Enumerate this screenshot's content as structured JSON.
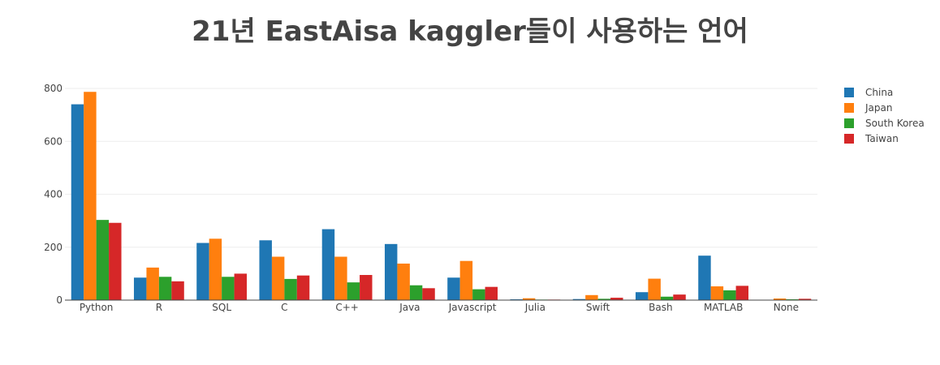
{
  "chart_data": {
    "type": "bar",
    "title": "21년 EastAisa kaggler들이 사용하는 언어",
    "xlabel": "",
    "ylabel": "",
    "ylim": [
      0,
      800
    ],
    "yticks": [
      0,
      200,
      400,
      600,
      800
    ],
    "grid": true,
    "legend_position": "top-right",
    "categories": [
      "Python",
      "R",
      "SQL",
      "C",
      "C++",
      "Java",
      "Javascript",
      "Julia",
      "Swift",
      "Bash",
      "MATLAB",
      "None"
    ],
    "series": [
      {
        "name": "China",
        "color": "#1f77b4",
        "values": [
          740,
          85,
          216,
          226,
          268,
          212,
          85,
          3,
          4,
          30,
          168,
          1
        ]
      },
      {
        "name": "Japan",
        "color": "#ff7f0e",
        "values": [
          787,
          123,
          232,
          164,
          164,
          138,
          148,
          7,
          19,
          81,
          52,
          6
        ]
      },
      {
        "name": "South Korea",
        "color": "#2ca02c",
        "values": [
          303,
          88,
          88,
          80,
          67,
          56,
          41,
          2,
          5,
          13,
          37,
          3
        ]
      },
      {
        "name": "Taiwan",
        "color": "#d62728",
        "values": [
          292,
          71,
          100,
          93,
          95,
          45,
          50,
          2,
          9,
          21,
          54,
          5
        ]
      }
    ]
  }
}
